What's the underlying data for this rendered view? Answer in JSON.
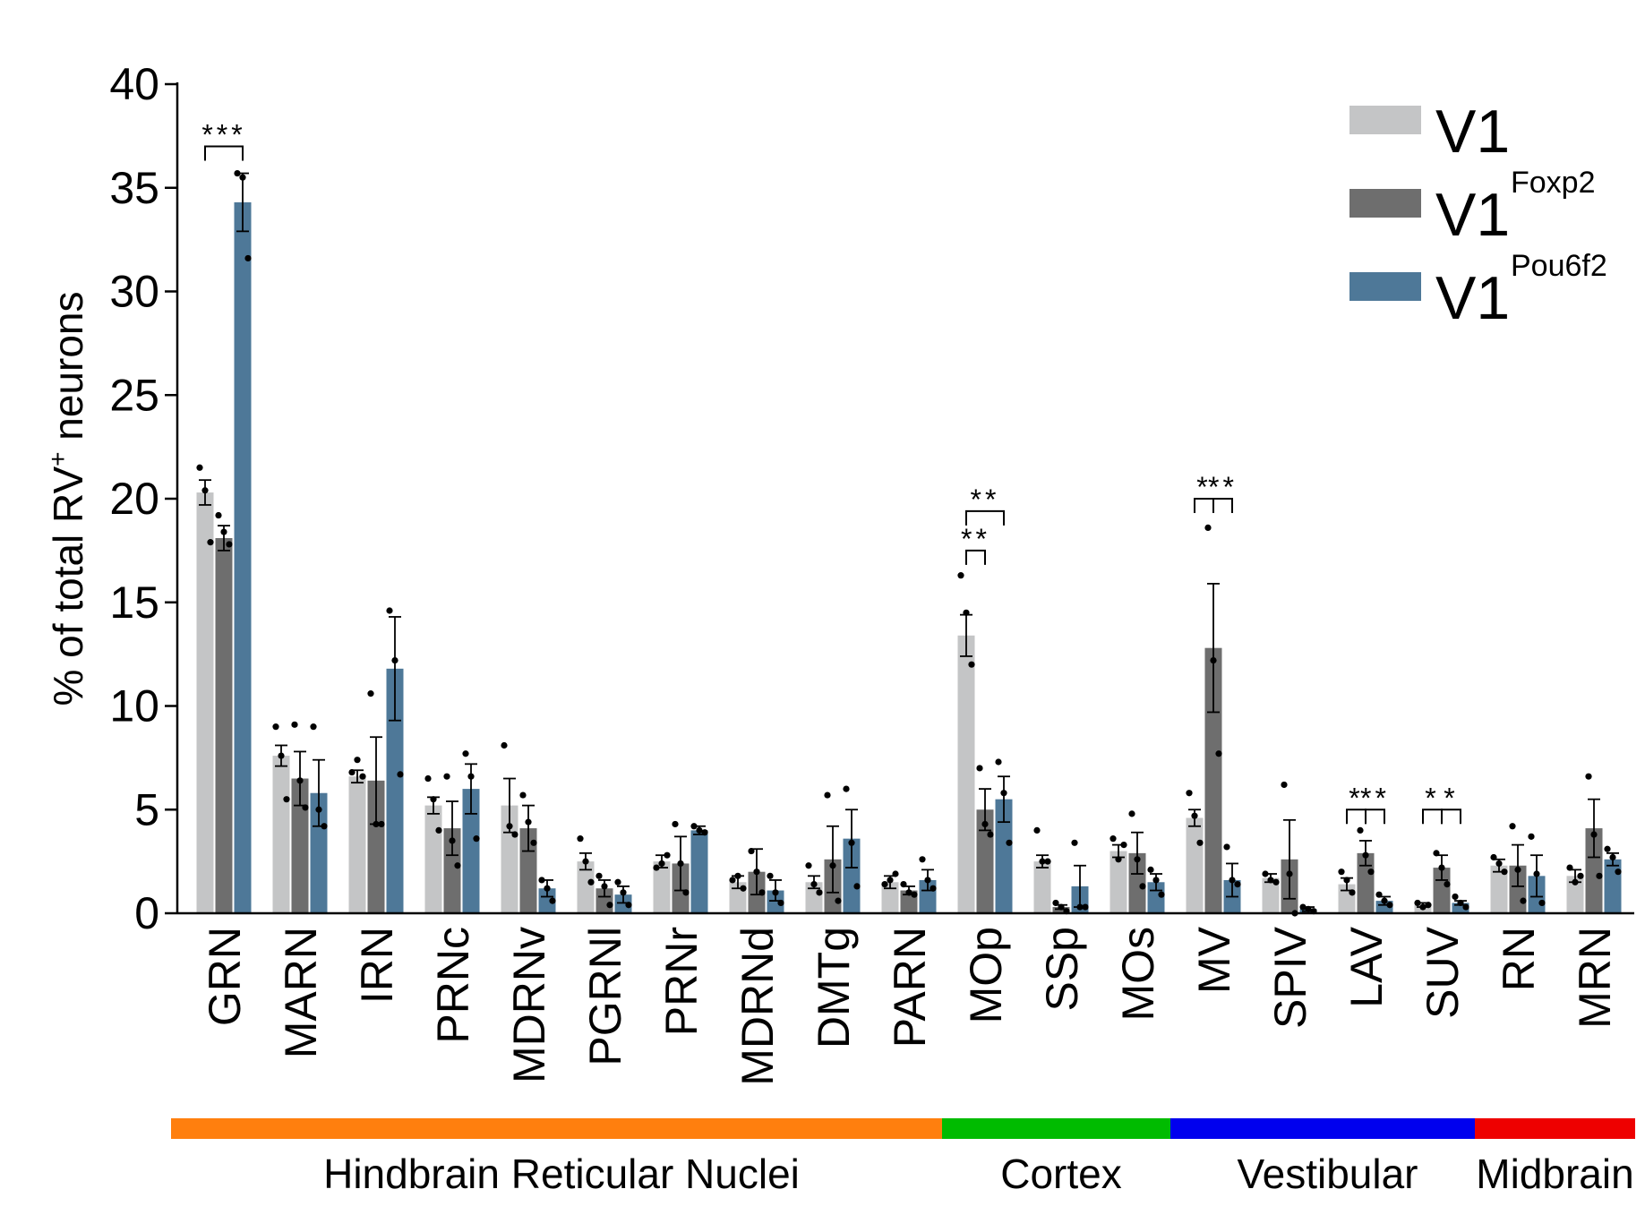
{
  "chart_data": {
    "type": "bar",
    "ylabel": "% of total RV",
    "ylabel_superscript": "+",
    "ylabel_suffix": " neurons",
    "ylim": [
      0,
      40
    ],
    "yticks": [
      "0",
      "5",
      "10",
      "15",
      "20",
      "25",
      "30",
      "35",
      "40"
    ],
    "categories": [
      "GRN",
      "MARN",
      "IRN",
      "PRNc",
      "MDRNv",
      "PGRNl",
      "PRNr",
      "MDRNd",
      "DMTg",
      "PARN",
      "MOp",
      "SSp",
      "MOs",
      "MV",
      "SPIV",
      "LAV",
      "SUV",
      "RN",
      "MRN"
    ],
    "series": [
      {
        "name": "V1",
        "superscript": "",
        "color": "#c4c5c6",
        "values": [
          20.3,
          7.6,
          6.6,
          5.2,
          5.2,
          2.5,
          2.5,
          1.5,
          1.5,
          1.5,
          13.4,
          2.5,
          3.0,
          4.6,
          1.7,
          1.4,
          0.4,
          2.3,
          1.8
        ],
        "errors": [
          0.6,
          0.5,
          0.3,
          0.4,
          1.3,
          0.4,
          0.3,
          0.3,
          0.3,
          0.3,
          1.0,
          0.3,
          0.3,
          0.4,
          0.2,
          0.3,
          0.1,
          0.3,
          0.3
        ]
      },
      {
        "name": "V1",
        "superscript": "Foxp2",
        "color": "#6e6e6e",
        "values": [
          18.1,
          6.5,
          6.4,
          4.1,
          4.1,
          1.2,
          2.4,
          2.0,
          2.6,
          1.1,
          5.0,
          0.3,
          2.9,
          12.8,
          2.6,
          2.9,
          2.2,
          2.3,
          4.1
        ],
        "errors": [
          0.6,
          1.3,
          2.1,
          1.3,
          1.1,
          0.4,
          1.3,
          1.1,
          1.6,
          0.2,
          1.0,
          0.1,
          1.0,
          3.1,
          1.9,
          0.6,
          0.6,
          1.0,
          1.4
        ]
      },
      {
        "name": "V1",
        "superscript": "Pou6f2",
        "color": "#4e7898",
        "values": [
          34.3,
          5.8,
          11.8,
          6.0,
          1.2,
          0.9,
          4.0,
          1.1,
          3.6,
          1.6,
          5.5,
          1.3,
          1.5,
          1.6,
          0.2,
          0.6,
          0.5,
          1.8,
          2.6
        ],
        "errors": [
          1.4,
          1.6,
          2.5,
          1.2,
          0.4,
          0.4,
          0.2,
          0.5,
          1.4,
          0.5,
          1.1,
          1.0,
          0.4,
          0.8,
          0.1,
          0.2,
          0.1,
          1.0,
          0.3
        ]
      }
    ],
    "points": [
      [
        [
          21.5,
          20.4,
          17.9
        ],
        [
          9.0,
          7.6,
          5.5
        ],
        [
          6.8,
          7.4,
          6.6
        ],
        [
          6.5,
          5.5,
          4.0
        ],
        [
          8.1,
          4.2,
          3.8
        ],
        [
          3.6,
          2.5,
          1.5
        ],
        [
          2.2,
          2.4,
          2.8
        ],
        [
          1.6,
          1.8,
          1.2
        ],
        [
          2.3,
          1.4,
          1.0
        ],
        [
          1.4,
          1.6,
          1.9
        ],
        [
          16.3,
          14.5,
          12.0
        ],
        [
          4.0,
          2.5,
          2.5
        ],
        [
          3.6,
          2.6,
          3.3
        ],
        [
          5.8,
          4.7,
          3.4
        ],
        [
          1.9,
          1.6,
          1.5
        ],
        [
          2.0,
          1.6,
          1.0
        ],
        [
          0.5,
          0.3,
          0.4
        ],
        [
          2.7,
          2.4,
          2.0
        ],
        [
          2.2,
          1.5,
          1.8
        ]
      ],
      [
        [
          19.2,
          18.4,
          17.8
        ],
        [
          9.1,
          6.4,
          5.1
        ],
        [
          10.6,
          4.3,
          4.3
        ],
        [
          6.6,
          3.5,
          2.3
        ],
        [
          5.7,
          4.4,
          3.4
        ],
        [
          1.8,
          1.3,
          0.4
        ],
        [
          4.3,
          2.4,
          1.0
        ],
        [
          3.0,
          2.0,
          1.0
        ],
        [
          5.7,
          2.3,
          0.6
        ],
        [
          1.4,
          1.0,
          0.9
        ],
        [
          7.0,
          4.3,
          3.8
        ],
        [
          0.5,
          0.3,
          0.1
        ],
        [
          4.8,
          2.6,
          1.3
        ],
        [
          18.6,
          12.2,
          7.7
        ],
        [
          6.2,
          1.9,
          0.0
        ],
        [
          4.0,
          2.8,
          2.0
        ],
        [
          2.9,
          2.2,
          1.4
        ],
        [
          4.2,
          2.1,
          0.6
        ],
        [
          6.6,
          3.8,
          1.8
        ]
      ],
      [
        [
          35.7,
          35.5,
          31.6
        ],
        [
          9.0,
          5.0,
          4.2
        ],
        [
          14.6,
          12.2,
          6.7
        ],
        [
          7.7,
          6.6,
          3.6
        ],
        [
          1.6,
          1.2,
          0.6
        ],
        [
          1.5,
          1.0,
          0.4
        ],
        [
          4.2,
          4.0,
          3.9
        ],
        [
          1.8,
          1.0,
          0.5
        ],
        [
          6.0,
          3.4,
          1.3
        ],
        [
          2.6,
          1.6,
          1.2
        ],
        [
          7.3,
          5.8,
          3.4
        ],
        [
          3.4,
          0.3,
          0.3
        ],
        [
          2.1,
          1.6,
          0.9
        ],
        [
          3.2,
          1.6,
          1.4
        ],
        [
          0.3,
          0.2,
          0.1
        ],
        [
          0.9,
          0.6,
          0.4
        ],
        [
          0.8,
          0.5,
          0.3
        ],
        [
          3.7,
          1.9,
          0.5
        ],
        [
          3.1,
          2.7,
          2.0
        ]
      ]
    ],
    "significance": [
      {
        "category": "GRN",
        "from": 0,
        "to": 2,
        "label": "***",
        "y": 37.0
      },
      {
        "category": "MOp",
        "from": 0,
        "to": 2,
        "label": "**",
        "y": 19.4
      },
      {
        "category": "MOp",
        "from": 0,
        "to": 1,
        "label": "**",
        "y": 17.5
      },
      {
        "category": "MV",
        "from": 0,
        "to": 1,
        "label": "*",
        "y": 20.0
      },
      {
        "category": "MV",
        "from": 1,
        "to": 2,
        "label": "**",
        "y": 20.0
      },
      {
        "category": "LAV",
        "from": 0,
        "to": 1,
        "label": "*",
        "y": 5.0
      },
      {
        "category": "LAV",
        "from": 1,
        "to": 2,
        "label": "**",
        "y": 5.0
      },
      {
        "category": "SUV",
        "from": 0,
        "to": 1,
        "label": "*",
        "y": 5.0
      },
      {
        "category": "SUV",
        "from": 1,
        "to": 2,
        "label": "*",
        "y": 5.0
      }
    ],
    "groups": [
      {
        "label": "Hindbrain Reticular Nuclei",
        "color": "#ff7f0e",
        "first": 0,
        "last": 9
      },
      {
        "label": "Cortex",
        "color": "#00bb00",
        "first": 10,
        "last": 12
      },
      {
        "label": "Vestibular",
        "color": "#0000ee",
        "first": 13,
        "last": 16
      },
      {
        "label": "Midbrain",
        "color": "#ee0000",
        "first": 17,
        "last": 18
      }
    ],
    "legend_position": "top-right"
  }
}
